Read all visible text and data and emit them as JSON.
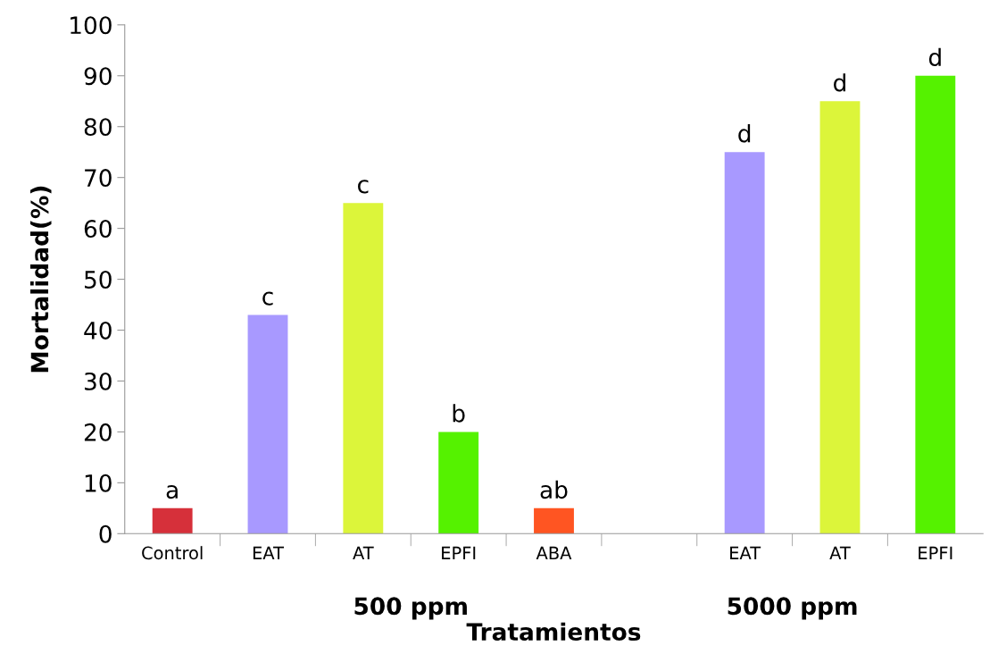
{
  "chart_data": {
    "type": "bar",
    "xlabel": "Tratamientos",
    "ylabel": "Mortalidad(%)",
    "categories": [
      "Control",
      "EAT",
      "AT",
      "EPFI",
      "ABA",
      null,
      "EAT",
      "AT",
      "EPFI"
    ],
    "values": [
      5,
      43,
      65,
      20,
      5,
      null,
      75,
      85,
      90
    ],
    "colors": [
      "#d6303a",
      "#a899ff",
      "#dcf53a",
      "#55f200",
      "#ff5522",
      "#ffffff",
      "#a899ff",
      "#dcf53a",
      "#55f200"
    ],
    "value_labels": [
      "a",
      "c",
      "c",
      "b",
      "ab",
      null,
      "d",
      "d",
      "d"
    ],
    "annotations": [
      "500 ppm",
      "5000 ppm"
    ],
    "ylim": [
      0,
      100
    ],
    "yticks": [
      0,
      10,
      20,
      30,
      40,
      50,
      60,
      70,
      80,
      90,
      100
    ],
    "grid": false,
    "legend": false
  }
}
